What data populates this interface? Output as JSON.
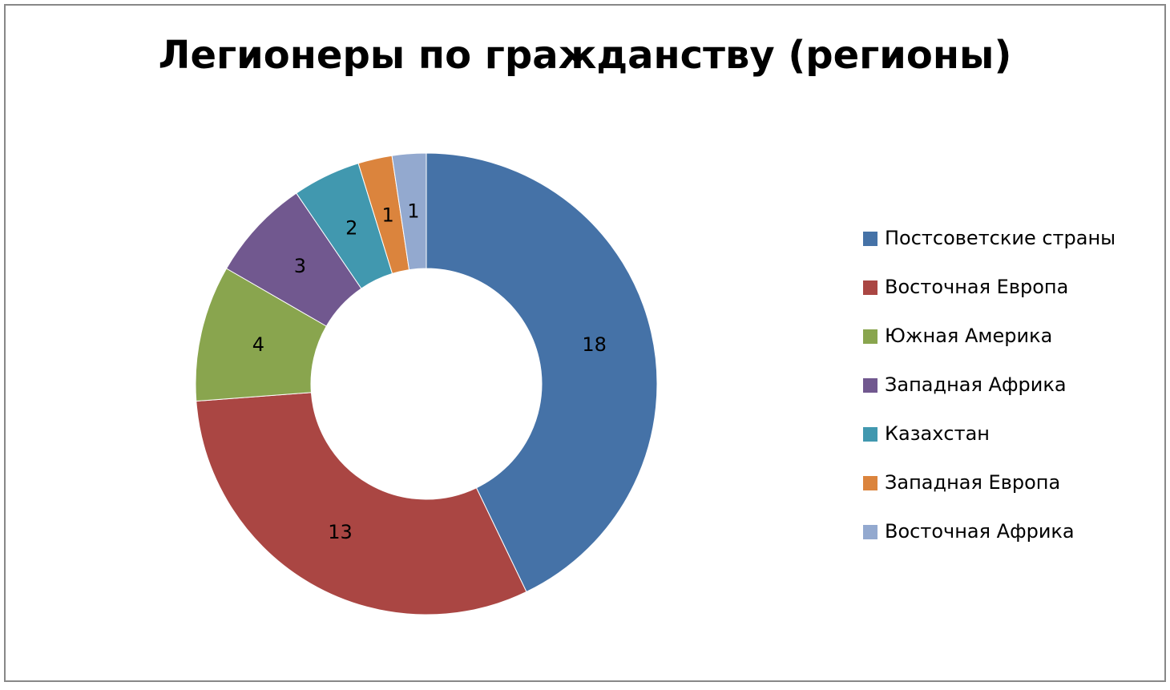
{
  "chart_data": {
    "type": "donut",
    "title": "Легионеры по гражданству (регионы)",
    "categories": [
      "Постсоветские страны",
      "Восточная Европа",
      "Южная Америка",
      "Западная Африка",
      "Казахстан",
      "Западная Европа",
      "Восточная Африка"
    ],
    "values": [
      18,
      13,
      4,
      3,
      2,
      1,
      1
    ],
    "colors": [
      "#4572A7",
      "#AA4643",
      "#89A54E",
      "#71588F",
      "#4198AF",
      "#DB843D",
      "#93A9CF"
    ],
    "legend": "right"
  }
}
